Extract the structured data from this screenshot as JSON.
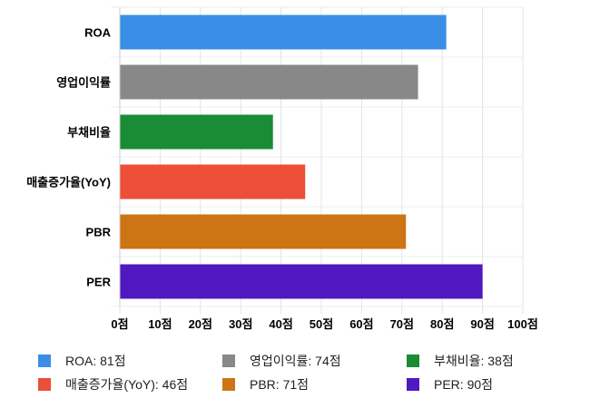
{
  "chart_data": {
    "type": "bar",
    "orientation": "horizontal",
    "categories": [
      "ROA",
      "영업이익률",
      "부채비율",
      "매출증가율(YoY)",
      "PBR",
      "PER"
    ],
    "values": [
      81,
      74,
      38,
      46,
      71,
      90
    ],
    "colors": [
      "#3a8ee6",
      "#888888",
      "#1a8c35",
      "#ec4e38",
      "#cd7415",
      "#5018c0"
    ],
    "xlim": [
      0,
      100
    ],
    "xticks": [
      0,
      10,
      20,
      30,
      40,
      50,
      60,
      70,
      80,
      90,
      100
    ],
    "tick_suffix": "점",
    "grid": true,
    "legend_position": "bottom",
    "legend": [
      "ROA: 81점",
      "영업이익률: 74점",
      "부채비율: 38점",
      "매출증가율(YoY): 46점",
      "PBR: 71점",
      "PER: 90점"
    ]
  }
}
